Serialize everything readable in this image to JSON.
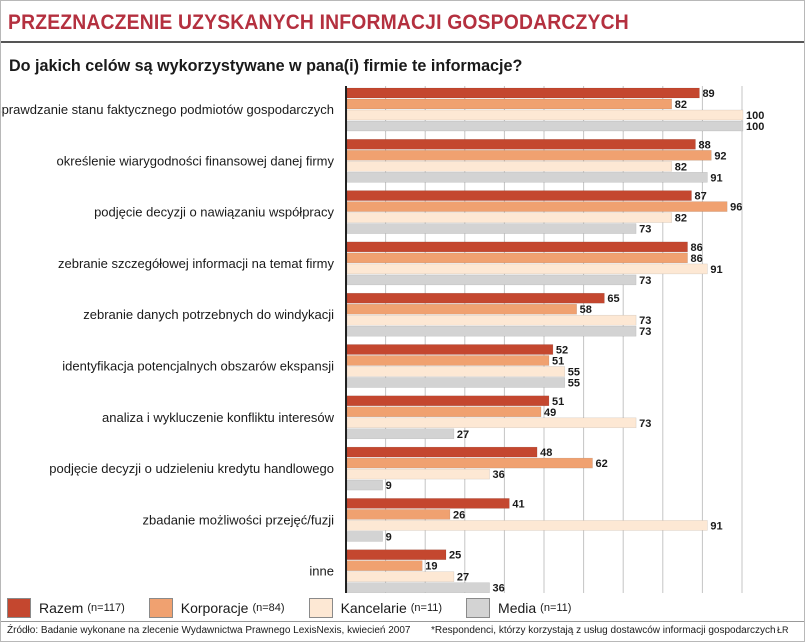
{
  "header": {
    "title": "PRZEZNACZENIE UZYSKANYCH INFORMACJI GOSPODARCZYCH",
    "question": "Do jakich celów są wykorzystywane w pana(i) firmie te informacje?"
  },
  "chart_data": {
    "type": "bar",
    "orientation": "horizontal",
    "title": "PRZEZNACZENIE UZYSKANYCH INFORMACJI GOSPODARCZYCH",
    "subtitle": "Do jakich celów są wykorzystywane w pana(i) firmie te informacje?",
    "xlim": [
      0,
      100
    ],
    "grid": true,
    "categories": [
      "sprawdzanie stanu faktycznego podmiotów  gospodarczych",
      "określenie wiarygodności finansowej danej firmy",
      "podjęcie decyzji o nawiązaniu współpracy",
      "zebranie szczegółowej informacji na temat firmy",
      "zebranie danych potrzebnych do windykacji",
      "identyfikacja potencjalnych obszarów ekspansji",
      "analiza i wykluczenie konfliktu interesów",
      "podjęcie decyzji o udzieleniu kredytu  handlowego",
      "zbadanie możliwości przejęć/fuzji",
      "inne"
    ],
    "series": [
      {
        "name": "Razem",
        "n": "(n=117)",
        "color": "#c4472f",
        "values": [
          89,
          88,
          87,
          86,
          65,
          52,
          51,
          48,
          41,
          25
        ]
      },
      {
        "name": "Korporacje",
        "n": "(n=84)",
        "color": "#f0a170",
        "values": [
          82,
          92,
          96,
          86,
          58,
          51,
          49,
          62,
          26,
          19
        ]
      },
      {
        "name": "Kancelarie",
        "n": "(n=11)",
        "color": "#fde8d4",
        "values": [
          100,
          82,
          82,
          91,
          73,
          55,
          73,
          36,
          91,
          27
        ]
      },
      {
        "name": "Media",
        "n": "(n=11)",
        "color": "#d3d3d3",
        "values": [
          100,
          91,
          73,
          73,
          73,
          55,
          27,
          9,
          9,
          36
        ]
      }
    ],
    "legend": "bottom"
  },
  "footer": {
    "source": "Źródło: Badanie wykonane na zlecenie Wydawnictwa Prawnego LexisNexis, kwiecień 2007",
    "footnote": "*Respondenci, którzy korzystają z usług dostawców informacji gospodarczych",
    "credit": "ŁR"
  }
}
